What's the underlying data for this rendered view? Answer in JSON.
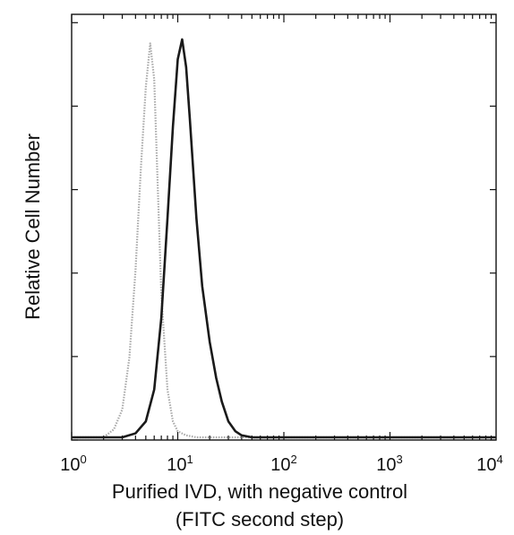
{
  "chart_data": {
    "type": "line",
    "title": "",
    "ylabel": "Relative Cell Number",
    "xlabel": "Purified IVD, with negative control",
    "xlabel_line2": "(FITC second step)",
    "x_scale": "log",
    "xlim": [
      1,
      10000
    ],
    "ylim": [
      0,
      1
    ],
    "grid": false,
    "legend": "none",
    "x_ticks": [
      {
        "value": 1,
        "base": "10",
        "exp": "0"
      },
      {
        "value": 10,
        "base": "10",
        "exp": "1"
      },
      {
        "value": 100,
        "base": "10",
        "exp": "2"
      },
      {
        "value": 1000,
        "base": "10",
        "exp": "3"
      },
      {
        "value": 10000,
        "base": "10",
        "exp": "4"
      }
    ],
    "series": [
      {
        "color": "#a8a8a8",
        "style": "dotted",
        "x": [
          1,
          2,
          2.5,
          3,
          3.5,
          4,
          4.5,
          5,
          5.5,
          6,
          6.5,
          7,
          8,
          9,
          10,
          12,
          15,
          20,
          50,
          10000
        ],
        "y": [
          0,
          0,
          0.02,
          0.07,
          0.2,
          0.42,
          0.68,
          0.88,
          0.99,
          0.9,
          0.62,
          0.36,
          0.12,
          0.04,
          0.015,
          0.005,
          0,
          0,
          0,
          0
        ]
      },
      {
        "color": "#1a1a1a",
        "style": "solid",
        "x": [
          1,
          3,
          4,
          5,
          6,
          7,
          8,
          9,
          10,
          11,
          12,
          13,
          15,
          17,
          20,
          23,
          26,
          30,
          35,
          40,
          50,
          100,
          10000
        ],
        "y": [
          0,
          0,
          0.01,
          0.04,
          0.12,
          0.3,
          0.55,
          0.78,
          0.95,
          1.0,
          0.93,
          0.8,
          0.55,
          0.38,
          0.24,
          0.15,
          0.09,
          0.04,
          0.015,
          0.005,
          0,
          0,
          0
        ]
      }
    ]
  }
}
